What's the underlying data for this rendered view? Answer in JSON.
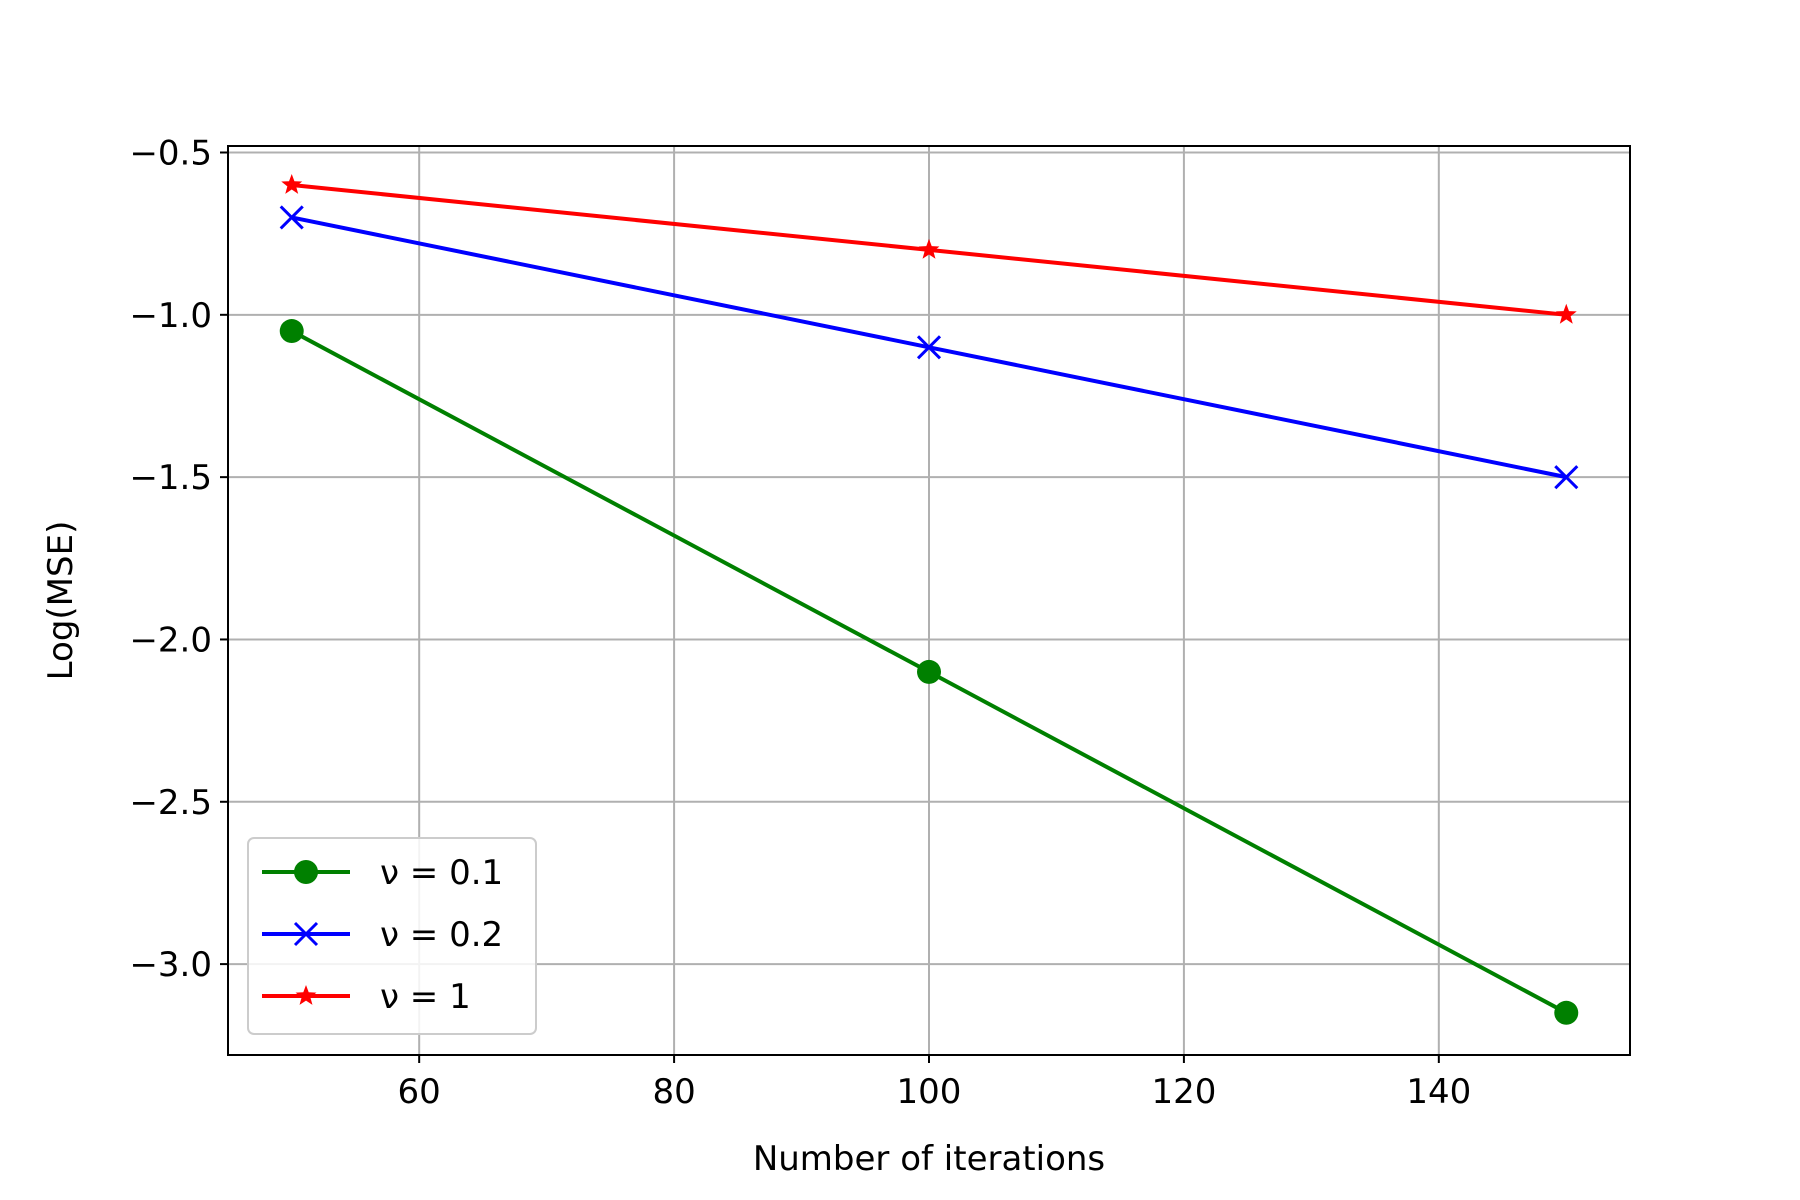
{
  "chart_data": {
    "type": "line",
    "title": "",
    "xlabel": "Number of iterations",
    "ylabel": "Log(MSE)",
    "xlim": [
      45,
      155
    ],
    "ylim": [
      -3.28,
      -0.48
    ],
    "xticks": [
      60,
      80,
      100,
      120,
      140
    ],
    "xtick_labels": [
      "60",
      "80",
      "100",
      "120",
      "140"
    ],
    "yticks": [
      -3.0,
      -2.5,
      -2.0,
      -1.5,
      -1.0,
      -0.5
    ],
    "ytick_labels": [
      "−3.0",
      "−2.5",
      "−2.0",
      "−1.5",
      "−1.0",
      "−0.5"
    ],
    "grid": true,
    "legend_position": "lower-left",
    "series": [
      {
        "name": "ν = 0.1",
        "marker": "circle",
        "color": "#008000",
        "x": [
          50,
          100,
          150
        ],
        "y": [
          -1.05,
          -2.1,
          -3.15
        ]
      },
      {
        "name": "ν = 0.2",
        "marker": "x",
        "color": "#0000ff",
        "x": [
          50,
          100,
          150
        ],
        "y": [
          -0.7,
          -1.1,
          -1.5
        ]
      },
      {
        "name": "ν = 1",
        "marker": "star",
        "color": "#ff0000",
        "x": [
          50,
          100,
          150
        ],
        "y": [
          -0.6,
          -0.8,
          -1.0
        ]
      }
    ]
  }
}
